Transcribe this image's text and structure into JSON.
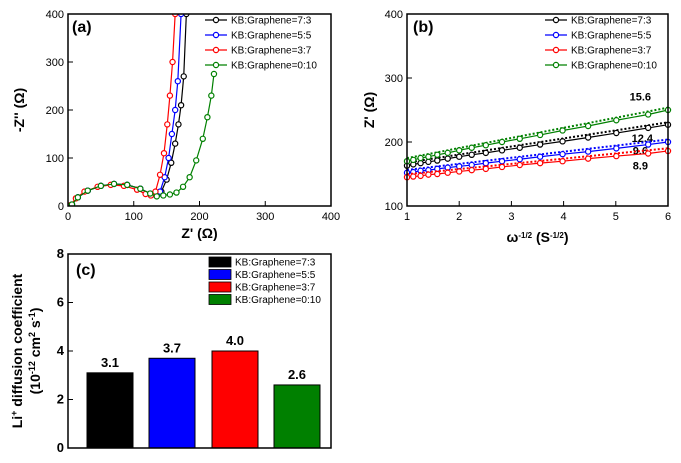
{
  "chart_data": [
    {
      "panel": "(a)",
      "type": "scatter",
      "xlabel": "Z' (Ω)",
      "ylabel": "-Z'' (Ω)",
      "xlim": [
        0,
        400
      ],
      "ylim": [
        0,
        400
      ],
      "xticks": [
        "0",
        "100",
        "200",
        "300",
        "400"
      ],
      "yticks": [
        "0",
        "100",
        "200",
        "300",
        "400"
      ],
      "legend_position": "top-right",
      "series": [
        {
          "name": "KB:Graphene=7:3",
          "color": "#000000",
          "x": [
            6,
            15,
            30,
            50,
            70,
            90,
            110,
            125,
            135,
            142,
            150,
            157,
            163,
            168,
            172,
            176,
            180
          ],
          "y": [
            3,
            18,
            32,
            42,
            46,
            44,
            36,
            25,
            22,
            30,
            55,
            90,
            130,
            170,
            210,
            270,
            400
          ]
        },
        {
          "name": "KB:Graphene=5:5",
          "color": "#0000ff",
          "x": [
            6,
            15,
            30,
            50,
            70,
            90,
            110,
            125,
            133,
            140,
            147,
            153,
            158,
            163,
            167,
            172
          ],
          "y": [
            3,
            18,
            32,
            42,
            46,
            44,
            36,
            26,
            23,
            30,
            60,
            100,
            150,
            200,
            260,
            400
          ]
        },
        {
          "name": "KB:Graphene=3:7",
          "color": "#ff0000",
          "x": [
            4,
            12,
            25,
            45,
            65,
            85,
            105,
            118,
            126,
            133,
            140,
            146,
            151,
            155,
            159,
            163
          ],
          "y": [
            2,
            16,
            30,
            40,
            44,
            42,
            34,
            25,
            22,
            30,
            65,
            110,
            170,
            230,
            300,
            400
          ]
        },
        {
          "name": "KB:Graphene=0:10",
          "color": "#008000",
          "x": [
            6,
            15,
            30,
            50,
            70,
            90,
            110,
            125,
            135,
            145,
            155,
            165,
            175,
            185,
            195,
            205,
            212,
            218,
            222
          ],
          "y": [
            3,
            18,
            32,
            42,
            46,
            44,
            36,
            26,
            20,
            22,
            24,
            28,
            40,
            60,
            95,
            140,
            185,
            230,
            275
          ]
        }
      ]
    },
    {
      "panel": "(b)",
      "type": "scatter",
      "xlabel": "ω-1/2 (S-1/2)",
      "ylabel": "Z' (Ω)",
      "xlim": [
        1,
        6
      ],
      "ylim": [
        100,
        400
      ],
      "xticks": [
        "1",
        "2",
        "3",
        "4",
        "5",
        "6"
      ],
      "yticks": [
        "100",
        "200",
        "300",
        "400"
      ],
      "legend_position": "top-right",
      "series": [
        {
          "name": "KB:Graphene=7:3",
          "color": "#000000",
          "slope_label": "12.4",
          "x": [
            1.0,
            1.12,
            1.26,
            1.41,
            1.58,
            1.78,
            2.0,
            2.24,
            2.51,
            2.82,
            3.16,
            3.55,
            3.98,
            4.47,
            5.01,
            5.62,
            6.0
          ],
          "y": [
            163,
            165,
            167,
            169,
            171,
            174,
            177,
            180,
            183,
            187,
            191,
            196,
            201,
            207,
            214,
            222,
            227
          ]
        },
        {
          "name": "KB:Graphene=5:5",
          "color": "#0000ff",
          "slope_label": "9.6",
          "x": [
            1.0,
            1.12,
            1.26,
            1.41,
            1.58,
            1.78,
            2.0,
            2.24,
            2.51,
            2.82,
            3.16,
            3.55,
            3.98,
            4.47,
            5.01,
            5.62,
            6.0
          ],
          "y": [
            152,
            153,
            155,
            156,
            158,
            160,
            162,
            164,
            167,
            170,
            173,
            177,
            181,
            185,
            190,
            196,
            200
          ]
        },
        {
          "name": "KB:Graphene=3:7",
          "color": "#ff0000",
          "slope_label": "8.9",
          "x": [
            1.0,
            1.12,
            1.26,
            1.41,
            1.58,
            1.78,
            2.0,
            2.24,
            2.51,
            2.82,
            3.16,
            3.55,
            3.98,
            4.47,
            5.01,
            5.62,
            6.0
          ],
          "y": [
            145,
            146,
            147,
            149,
            150,
            152,
            154,
            156,
            158,
            161,
            164,
            167,
            170,
            174,
            178,
            182,
            186
          ]
        },
        {
          "name": "KB:Graphene=0:10",
          "color": "#008000",
          "slope_label": "15.6",
          "x": [
            1.0,
            1.12,
            1.26,
            1.41,
            1.58,
            1.78,
            2.0,
            2.24,
            2.51,
            2.82,
            3.16,
            3.55,
            3.98,
            4.47,
            5.01,
            5.62,
            6.0
          ],
          "y": [
            170,
            172,
            175,
            177,
            180,
            183,
            187,
            191,
            195,
            200,
            205,
            211,
            218,
            225,
            234,
            243,
            250
          ]
        }
      ]
    },
    {
      "panel": "(c)",
      "type": "bar",
      "ylabel": "Li+ diffusion coefficient (10-12 cm2 s-1)",
      "ylim": [
        0,
        8
      ],
      "yticks": [
        "0",
        "2",
        "4",
        "6",
        "8"
      ],
      "legend_position": "top-right",
      "categories": [
        "KB:Graphene=7:3",
        "KB:Graphene=5:5",
        "KB:Graphene=3:7",
        "KB:Graphene=0:10"
      ],
      "values": [
        3.1,
        3.7,
        4.0,
        2.6
      ],
      "value_labels": [
        "3.1",
        "3.7",
        "4.0",
        "2.6"
      ],
      "colors": [
        "#000000",
        "#0000ff",
        "#ff0000",
        "#008000"
      ]
    }
  ]
}
